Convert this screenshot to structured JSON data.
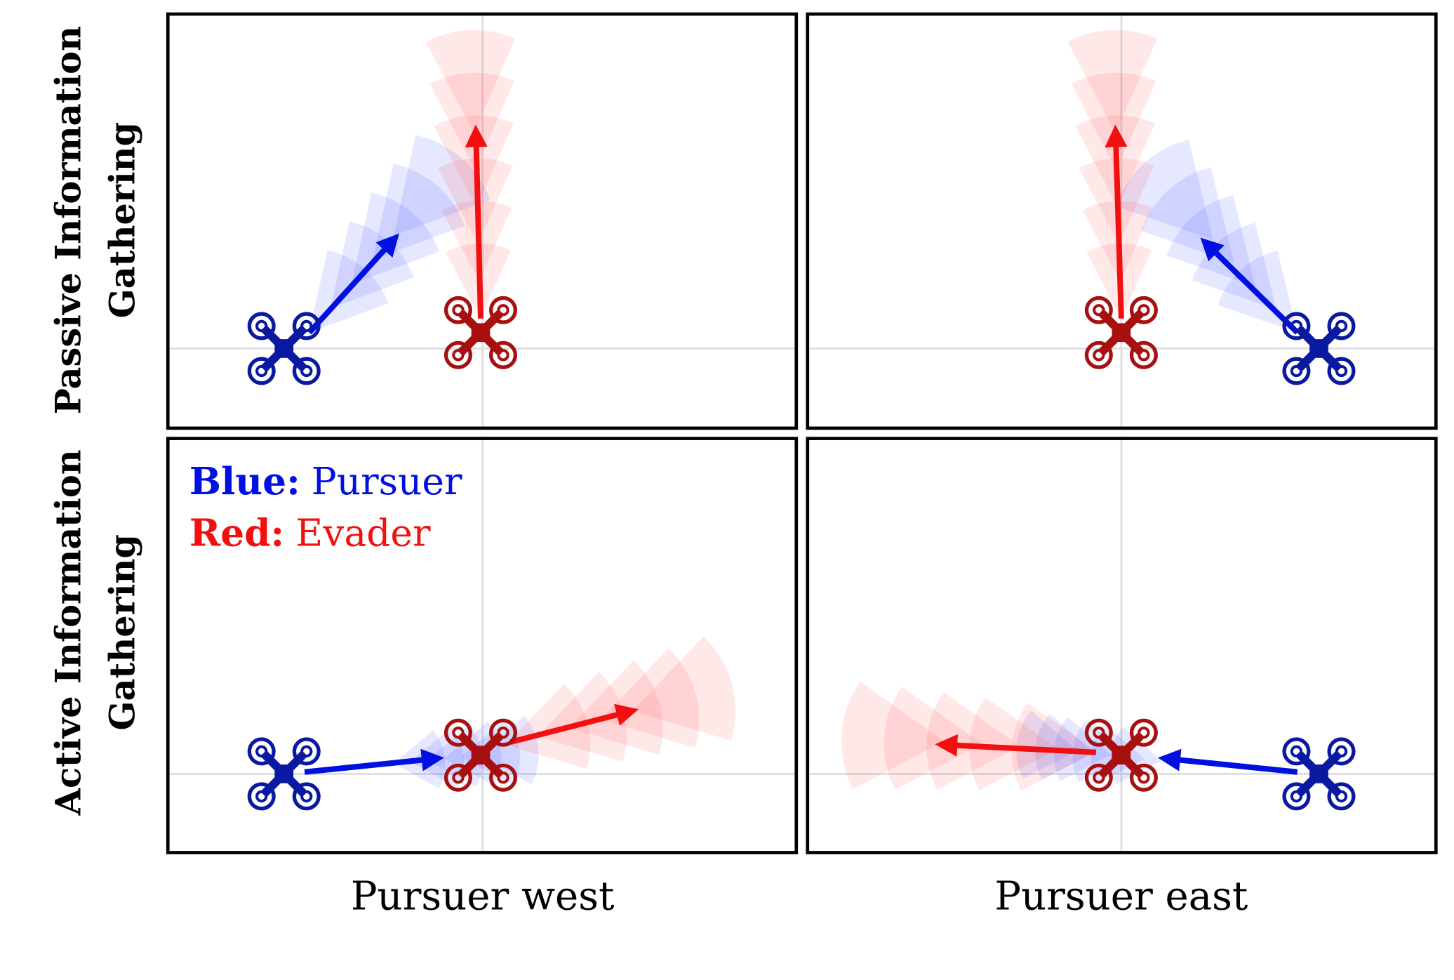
{
  "row_labels": [
    {
      "line1": "Passive Information",
      "line2": "Gathering"
    },
    {
      "line1": "Active Information",
      "line2": "Gathering"
    }
  ],
  "column_labels": [
    "Pursuer west",
    "Pursuer east"
  ],
  "legend": {
    "blue": {
      "key": "Blue:",
      "label": "Pursuer"
    },
    "red": {
      "key": "Red:",
      "label": "Evader"
    }
  }
}
